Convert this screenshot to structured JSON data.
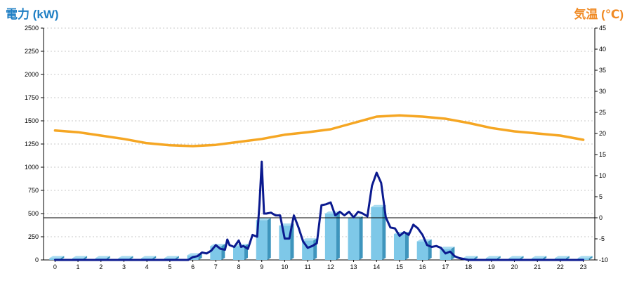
{
  "chart_data": {
    "type": "bar",
    "left_axis_label": "電力 (kW)",
    "right_axis_label": "気温 (℃)",
    "y_left": {
      "min": 0,
      "max": 2500,
      "ticks": [
        "0",
        "250",
        "500",
        "750",
        "1000",
        "1250",
        "1500",
        "1750",
        "2000",
        "2250",
        "2500"
      ]
    },
    "y_right": {
      "min": -10,
      "max": 45,
      "ticks": [
        "-10",
        "-5",
        "0",
        "5",
        "10",
        "15",
        "20",
        "25",
        "30",
        "35",
        "40",
        "45"
      ]
    },
    "categories": [
      "0",
      "1",
      "2",
      "3",
      "4",
      "5",
      "6",
      "7",
      "8",
      "9",
      "10",
      "11",
      "12",
      "13",
      "14",
      "15",
      "16",
      "17",
      "18",
      "19",
      "20",
      "21",
      "22",
      "23"
    ],
    "grid": true,
    "reference_line": {
      "axis": "right",
      "value": 0
    },
    "series": [
      {
        "kind": "bar",
        "axis": "left",
        "color": "#7ec8e8",
        "values": [
          20,
          20,
          20,
          20,
          20,
          20,
          50,
          150,
          150,
          430,
          370,
          210,
          500,
          450,
          570,
          280,
          200,
          120,
          20,
          20,
          20,
          20,
          20,
          20
        ]
      },
      {
        "kind": "line",
        "axis": "left",
        "color": "#0b1a8f",
        "x": [
          0,
          0.5,
          1,
          1.5,
          2,
          2.5,
          3,
          3.5,
          4,
          4.5,
          5,
          5.5,
          5.8,
          6,
          6.2,
          6.4,
          6.6,
          6.8,
          7,
          7.2,
          7.4,
          7.5,
          7.6,
          7.8,
          8,
          8.1,
          8.2,
          8.4,
          8.6,
          8.8,
          8.9,
          9,
          9.1,
          9.2,
          9.4,
          9.6,
          9.8,
          10,
          10.2,
          10.4,
          10.6,
          10.8,
          11,
          11.2,
          11.4,
          11.6,
          11.8,
          12,
          12.2,
          12.4,
          12.6,
          12.8,
          13,
          13.2,
          13.4,
          13.6,
          13.8,
          14,
          14.2,
          14.4,
          14.6,
          14.8,
          15,
          15.2,
          15.4,
          15.6,
          15.8,
          16,
          16.2,
          16.4,
          16.6,
          16.8,
          17,
          17.2,
          17.4,
          17.6,
          18,
          19,
          20,
          21,
          22,
          23
        ],
        "values": [
          0,
          0,
          0,
          0,
          0,
          0,
          0,
          0,
          0,
          0,
          0,
          0,
          0,
          30,
          40,
          80,
          70,
          100,
          160,
          120,
          110,
          220,
          160,
          140,
          210,
          140,
          150,
          120,
          270,
          250,
          600,
          1060,
          500,
          500,
          510,
          480,
          480,
          230,
          230,
          480,
          350,
          200,
          130,
          150,
          180,
          590,
          600,
          620,
          480,
          520,
          480,
          520,
          460,
          520,
          500,
          470,
          800,
          940,
          830,
          460,
          350,
          340,
          260,
          300,
          270,
          380,
          340,
          270,
          160,
          140,
          150,
          130,
          70,
          90,
          40,
          20,
          0,
          0,
          0,
          0,
          0,
          0
        ]
      },
      {
        "kind": "line",
        "axis": "right",
        "color": "#f5a623",
        "x": [
          0,
          1,
          2,
          3,
          4,
          5,
          6,
          7,
          8,
          9,
          10,
          11,
          12,
          13,
          14,
          15,
          16,
          17,
          18,
          19,
          20,
          21,
          22,
          23
        ],
        "values": [
          20.7,
          20.3,
          19.5,
          18.7,
          17.7,
          17.2,
          17,
          17.3,
          18,
          18.7,
          19.7,
          20.3,
          21,
          22.5,
          24,
          24.3,
          24,
          23.5,
          22.5,
          21.3,
          20.5,
          20,
          19.5,
          18.5
        ]
      }
    ]
  }
}
